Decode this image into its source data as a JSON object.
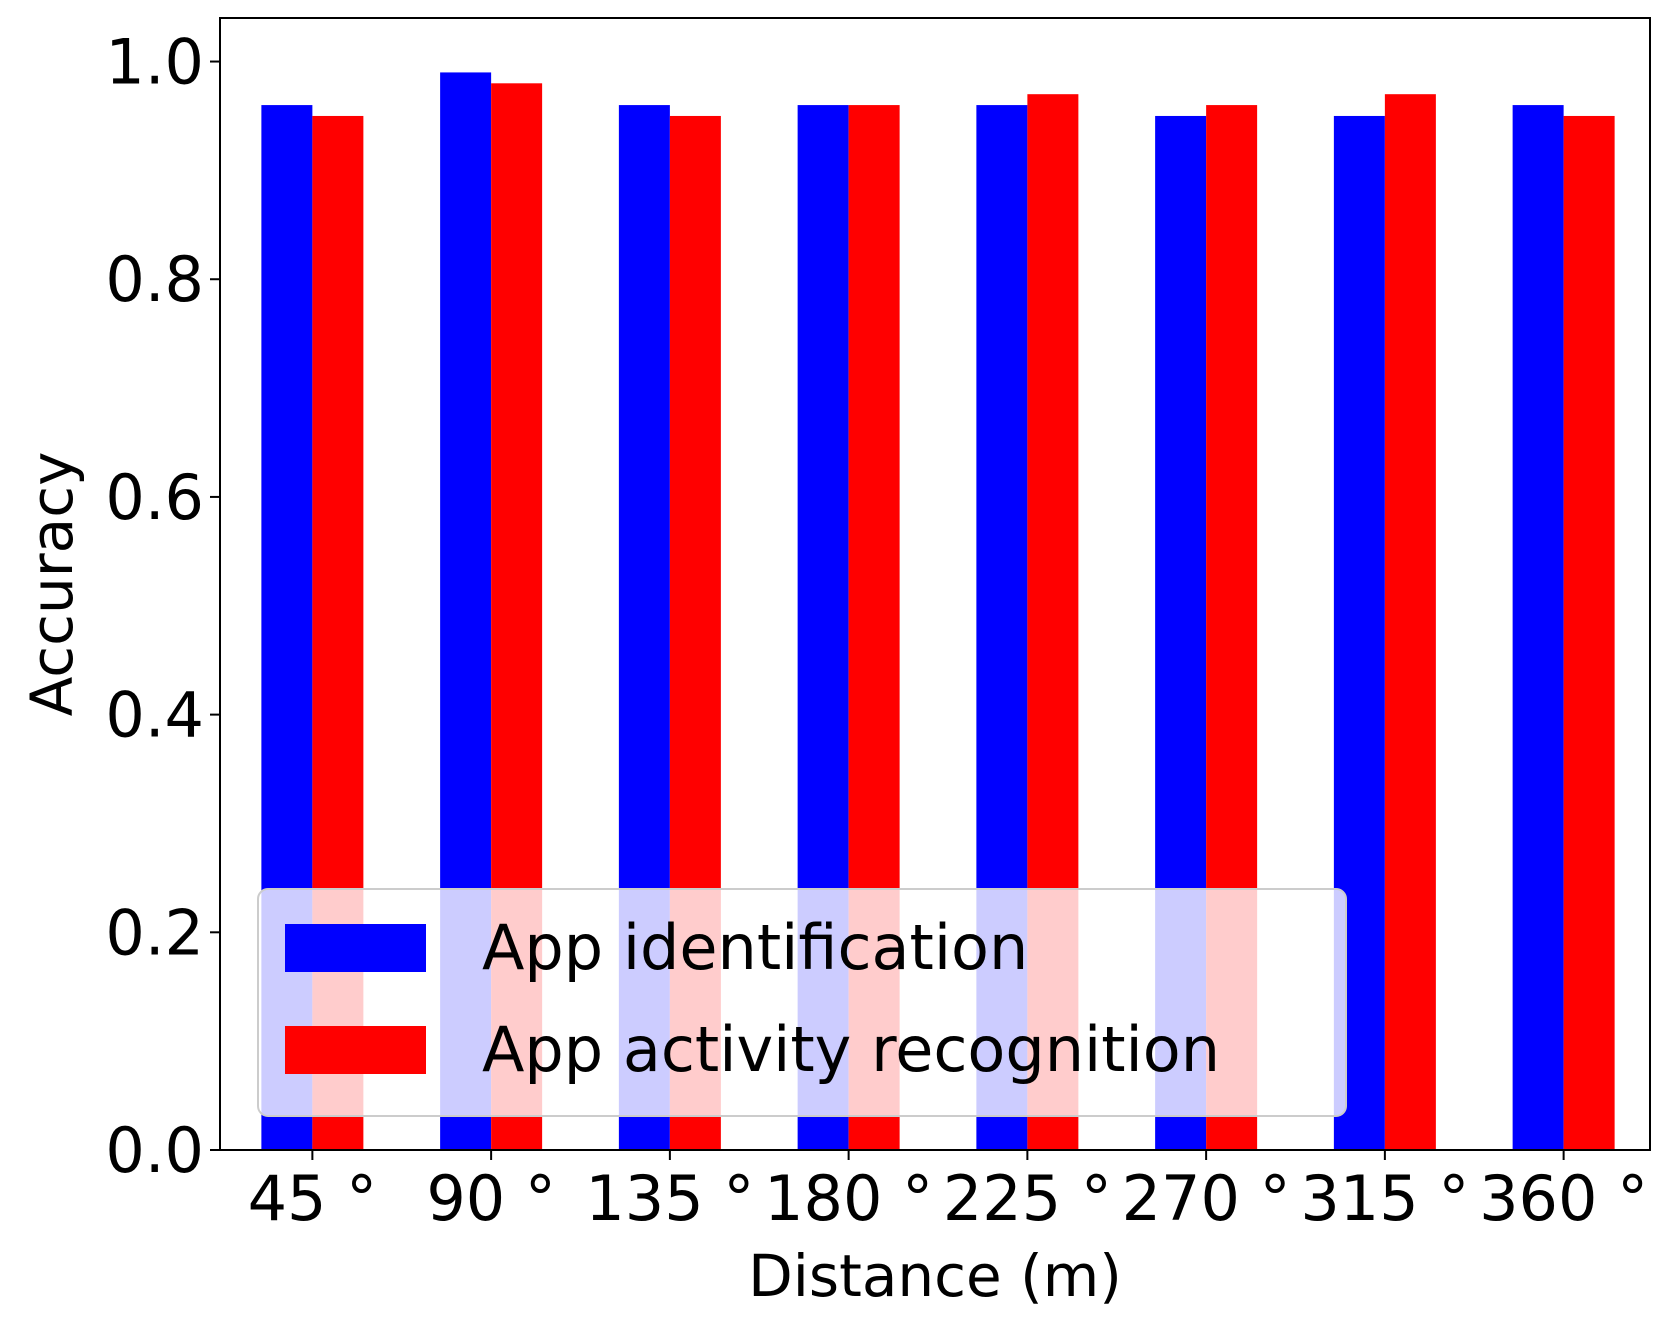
{
  "chart_data": {
    "type": "bar",
    "xlabel": "Distance (m)",
    "ylabel": "Accuracy",
    "categories": [
      "45 °",
      "90 °",
      "135 °",
      "180 °",
      "225 °",
      "270 °",
      "315 °",
      "360 °"
    ],
    "series": [
      {
        "name": "App identification",
        "color": "#0000ff",
        "values": [
          0.96,
          0.99,
          0.96,
          0.96,
          0.96,
          0.95,
          0.95,
          0.96
        ]
      },
      {
        "name": "App activity recognition",
        "color": "#ff0000",
        "values": [
          0.95,
          0.98,
          0.95,
          0.96,
          0.97,
          0.96,
          0.97,
          0.95
        ]
      }
    ],
    "ylim": [
      0,
      1.04
    ],
    "yticks": [
      "0.0",
      "0.2",
      "0.4",
      "0.6",
      "0.8",
      "1.0"
    ],
    "grid": false,
    "legend_position": "lower-center"
  }
}
